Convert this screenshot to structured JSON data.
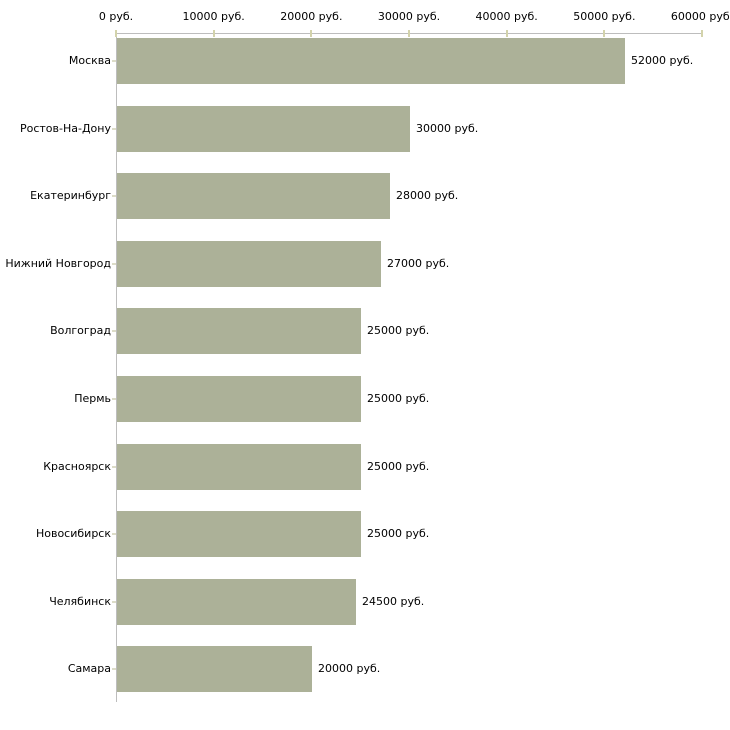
{
  "chart_data": {
    "type": "bar",
    "orientation": "horizontal",
    "title": "",
    "xlabel": "",
    "ylabel": "",
    "categories": [
      "Москва",
      "Ростов-На-Дону",
      "Екатеринбург",
      "Нижний Новгород",
      "Волгоград",
      "Пермь",
      "Красноярск",
      "Новосибирск",
      "Челябинск",
      "Самара"
    ],
    "values": [
      52000,
      30000,
      28000,
      27000,
      25000,
      25000,
      25000,
      25000,
      24500,
      20000
    ],
    "value_labels": [
      "52000 руб.",
      "30000 руб.",
      "28000 руб.",
      "27000 руб.",
      "25000 руб.",
      "25000 руб.",
      "25000 руб.",
      "25000 руб.",
      "24500 руб.",
      "20000 руб."
    ],
    "x_axis": {
      "position": "top",
      "min": 0,
      "max": 60000,
      "tick_values": [
        0,
        10000,
        20000,
        30000,
        40000,
        50000,
        60000
      ],
      "tick_labels": [
        "0 руб.",
        "10000 руб.",
        "20000 руб.",
        "30000 руб.",
        "40000 руб.",
        "50000 руб.",
        "60000 руб."
      ]
    },
    "grid": false,
    "legend": false,
    "colors": {
      "bar": "#acb198",
      "axis_line": "#bdbdbd",
      "x_tick_mark": "#d3d3ab",
      "y_tick_mark": "#dcdcc8",
      "text": "#000000",
      "background": "#ffffff"
    }
  }
}
